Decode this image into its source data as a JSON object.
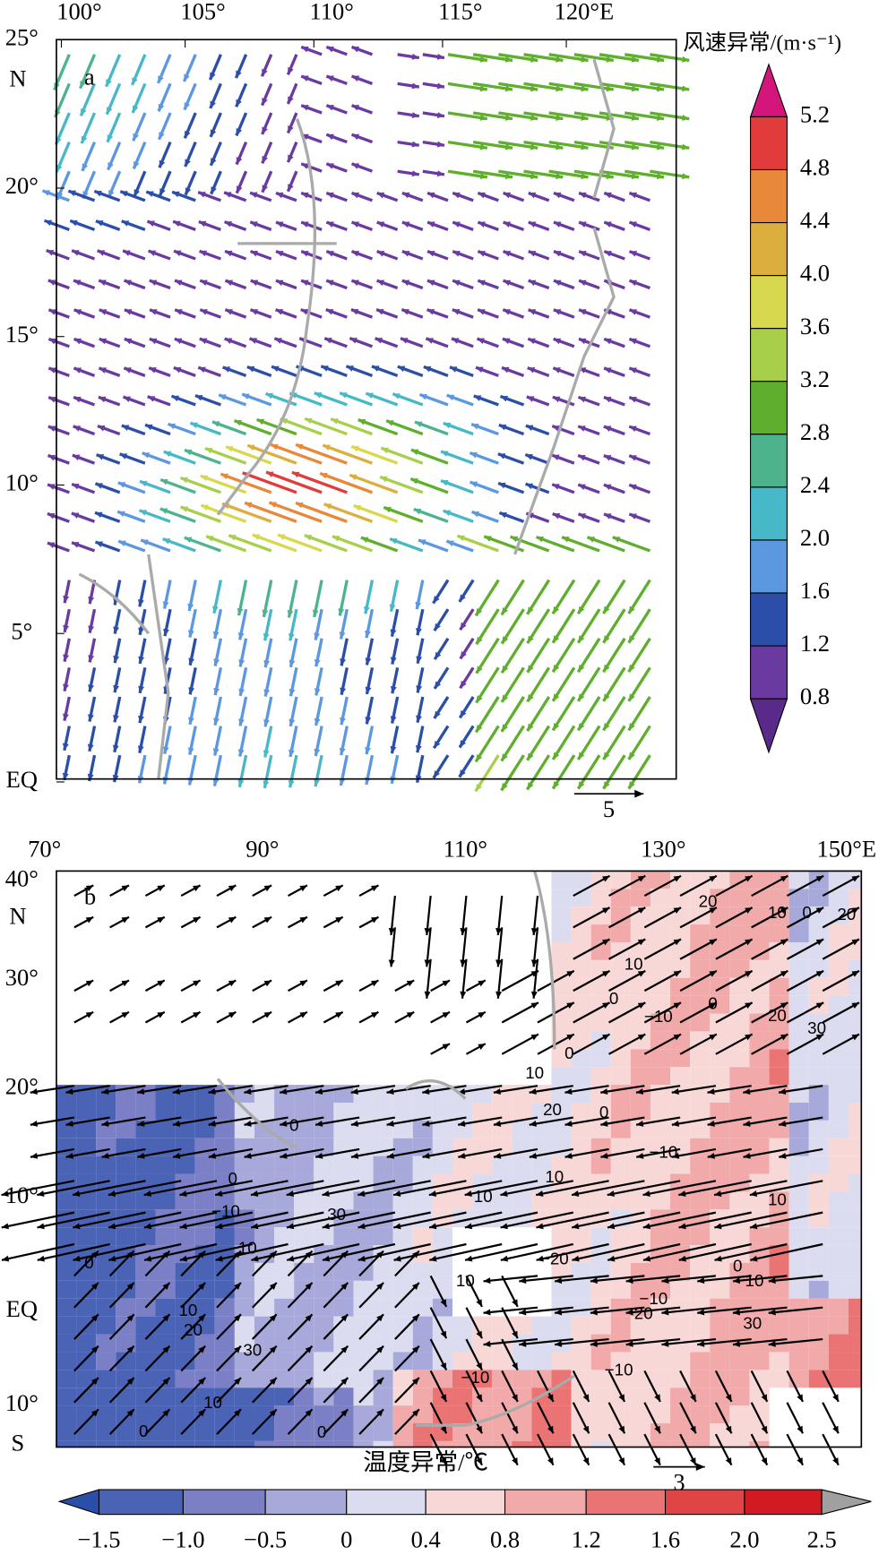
{
  "panel_a": {
    "label": "a",
    "x_ticks": [
      "100°",
      "105°",
      "110°",
      "115°",
      "120°E"
    ],
    "y_ticks": [
      "25°",
      "20°",
      "15°",
      "10°",
      "5°",
      "EQ"
    ],
    "north_label": "N",
    "colorbar": {
      "title": "风速异常/(m·s⁻¹)",
      "levels": [
        "5.2",
        "4.8",
        "4.4",
        "4.0",
        "3.6",
        "3.2",
        "2.8",
        "2.4",
        "2.0",
        "1.6",
        "1.2",
        "0.8"
      ],
      "colors": [
        "#d4157c",
        "#e23b3b",
        "#e8883a",
        "#dcae3e",
        "#d8d84e",
        "#a8cf4a",
        "#5fae2e",
        "#4db38c",
        "#47b8c8",
        "#5b98e0",
        "#2b4fa8",
        "#6a3aa0",
        "#5a2a8a"
      ]
    },
    "reference_vector": "5"
  },
  "panel_b": {
    "label": "b",
    "x_ticks": [
      "70°",
      "90°",
      "110°",
      "130°",
      "150°E"
    ],
    "y_ticks": [
      "40°",
      "30°",
      "20°",
      "10°",
      "EQ",
      "10°"
    ],
    "north_label": "N",
    "south_label": "S",
    "colorbar": {
      "title": "温度异常/℃",
      "levels": [
        "−1.5",
        "−1.0",
        "−0.5",
        "0",
        "0.4",
        "0.8",
        "1.2",
        "1.6",
        "2.0",
        "2.5"
      ],
      "colors": [
        "#2a4fa8",
        "#4a63b5",
        "#7b7fc5",
        "#a7a9db",
        "#dcdcf0",
        "#f8d7d7",
        "#f2a9a9",
        "#ea7474",
        "#e04444",
        "#d11a22",
        "#a0a0a0"
      ]
    },
    "reference_vector": "3",
    "contour_labels": [
      "20",
      "10",
      "0",
      "20",
      "10",
      "0",
      "−10",
      "0",
      "20",
      "30",
      "0",
      "10",
      "20",
      "0",
      "0",
      "−10",
      "0",
      "10",
      "10",
      "−10",
      "10",
      "30",
      "10",
      "−20",
      "0",
      "0",
      "10",
      "10",
      "−10",
      "20",
      "10",
      "20",
      "30",
      "30",
      "−10",
      "−10",
      "10",
      "0",
      "0"
    ]
  }
}
